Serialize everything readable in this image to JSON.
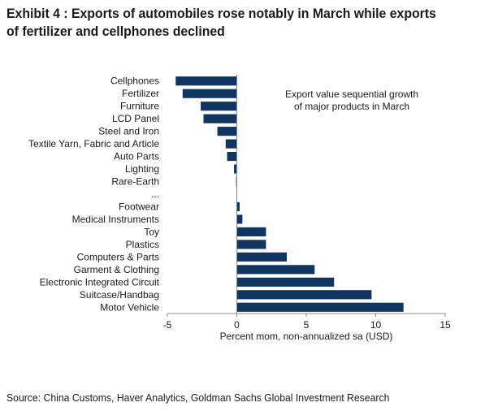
{
  "title": "Exhibit 4 : Exports of automobiles rose notably in March while exports of fertilizer and cellphones declined",
  "source": "Source: China Customs, Haver Analytics, Goldman Sachs Global Investment Research",
  "colors": {
    "bar": "#0f3560",
    "axis": "#888888"
  },
  "chart_data": {
    "type": "bar",
    "orientation": "horizontal",
    "annotation": "Export value sequential growth of major products in March",
    "annotation_lines": [
      "Export value sequential growth",
      "of major products in March"
    ],
    "xlabel": "Percent mom, non-annualized sa (USD)",
    "ylabel": "",
    "xlim": [
      -5,
      15
    ],
    "xticks": [
      "-5",
      "0",
      "5",
      "10",
      "15"
    ],
    "grid": false,
    "categories": [
      "Cellphones",
      "Fertilizer",
      "Furniture",
      "LCD Panel",
      "Steel and Iron",
      "Textile Yarn, Fabric and Article",
      "Auto Parts",
      "Lighting",
      "Rare-Earth",
      "...",
      "Footwear",
      "Medical Instruments",
      "Toy",
      "Plastics",
      "Computers & Parts",
      "Garment & Clothing",
      "Electronic Integrated Circuit",
      "Suitcase/Handbag",
      "Motor Vehicle"
    ],
    "values": [
      -4.4,
      -3.9,
      -2.6,
      -2.4,
      -1.4,
      -0.8,
      -0.7,
      -0.2,
      -0.05,
      null,
      0.2,
      0.4,
      2.1,
      2.1,
      3.6,
      5.6,
      7.0,
      9.7,
      12.0
    ]
  }
}
